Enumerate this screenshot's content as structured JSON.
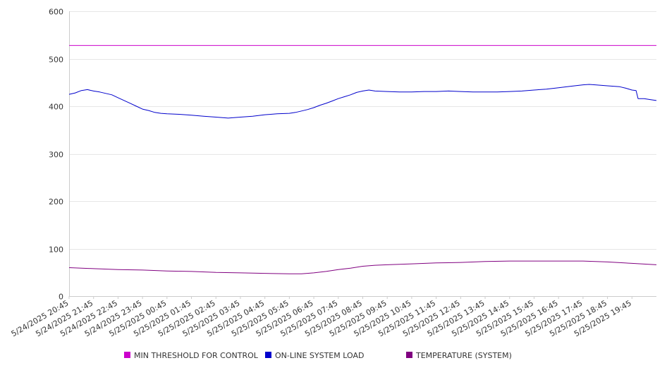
{
  "chart_data": {
    "type": "line",
    "title": "",
    "xlabel": "",
    "ylabel": "",
    "ylim": [
      0,
      600
    ],
    "yticks": [
      0,
      100,
      200,
      300,
      400,
      500,
      600
    ],
    "x_tick_labels": [
      "5/24/2025 20:45",
      "5/24/2025 21:45",
      "5/24/2025 22:45",
      "5/24/2025 23:45",
      "5/25/2025 00:45",
      "5/25/2025 01:45",
      "5/25/2025 02:45",
      "5/25/2025 03:45",
      "5/25/2025 04:45",
      "5/25/2025 05:45",
      "5/25/2025 06:45",
      "5/25/2025 07:45",
      "5/25/2025 08:45",
      "5/25/2025 09:45",
      "5/25/2025 10:45",
      "5/25/2025 11:45",
      "5/25/2025 12:45",
      "5/25/2025 13:45",
      "5/25/2025 14:45",
      "5/25/2025 15:45",
      "5/25/2025 16:45",
      "5/25/2025 17:45",
      "5/25/2025 18:45",
      "5/25/2025 19:45"
    ],
    "x_range": [
      "5/24/2025 20:45",
      "5/25/2025 20:45"
    ],
    "grid": "horizontal",
    "legend_position": "bottom",
    "series": [
      {
        "name": "MIN THRESHOLD FOR CONTROL",
        "color": "#cc00cc",
        "points": [
          [
            "5/24/2025 20:45",
            528
          ],
          [
            "5/25/2025 20:45",
            528
          ]
        ]
      },
      {
        "name": "ON-LINE SYSTEM LOAD",
        "color": "#0000cc",
        "points": [
          [
            "5/24/2025 20:45",
            425
          ],
          [
            "5/24/2025 21:00",
            428
          ],
          [
            "5/24/2025 21:15",
            433
          ],
          [
            "5/24/2025 21:30",
            435
          ],
          [
            "5/24/2025 21:45",
            432
          ],
          [
            "5/24/2025 22:00",
            430
          ],
          [
            "5/24/2025 22:15",
            427
          ],
          [
            "5/24/2025 22:30",
            424
          ],
          [
            "5/24/2025 22:45",
            418
          ],
          [
            "5/24/2025 23:00",
            412
          ],
          [
            "5/24/2025 23:15",
            406
          ],
          [
            "5/24/2025 23:30",
            400
          ],
          [
            "5/24/2025 23:45",
            394
          ],
          [
            "5/25/2025 00:00",
            391
          ],
          [
            "5/25/2025 00:15",
            387
          ],
          [
            "5/25/2025 00:30",
            385
          ],
          [
            "5/25/2025 00:45",
            384
          ],
          [
            "5/25/2025 01:15",
            383
          ],
          [
            "5/25/2025 01:45",
            381
          ],
          [
            "5/25/2025 02:15",
            379
          ],
          [
            "5/25/2025 02:45",
            377
          ],
          [
            "5/25/2025 03:15",
            375
          ],
          [
            "5/25/2025 03:45",
            377
          ],
          [
            "5/25/2025 04:15",
            379
          ],
          [
            "5/25/2025 04:45",
            382
          ],
          [
            "5/25/2025 05:15",
            384
          ],
          [
            "5/25/2025 05:45",
            385
          ],
          [
            "5/25/2025 06:00",
            387
          ],
          [
            "5/25/2025 06:15",
            390
          ],
          [
            "5/25/2025 06:30",
            393
          ],
          [
            "5/25/2025 06:45",
            397
          ],
          [
            "5/25/2025 07:00",
            402
          ],
          [
            "5/25/2025 07:15",
            406
          ],
          [
            "5/25/2025 07:30",
            411
          ],
          [
            "5/25/2025 07:45",
            416
          ],
          [
            "5/25/2025 08:00",
            420
          ],
          [
            "5/25/2025 08:15",
            424
          ],
          [
            "5/25/2025 08:30",
            429
          ],
          [
            "5/25/2025 08:45",
            432
          ],
          [
            "5/25/2025 09:00",
            434
          ],
          [
            "5/25/2025 09:15",
            432
          ],
          [
            "5/25/2025 09:45",
            431
          ],
          [
            "5/25/2025 10:15",
            430
          ],
          [
            "5/25/2025 10:45",
            430
          ],
          [
            "5/25/2025 11:15",
            431
          ],
          [
            "5/25/2025 11:45",
            431
          ],
          [
            "5/25/2025 12:15",
            432
          ],
          [
            "5/25/2025 12:45",
            431
          ],
          [
            "5/25/2025 13:15",
            430
          ],
          [
            "5/25/2025 13:45",
            430
          ],
          [
            "5/25/2025 14:15",
            430
          ],
          [
            "5/25/2025 14:45",
            431
          ],
          [
            "5/25/2025 15:15",
            432
          ],
          [
            "5/25/2025 15:45",
            434
          ],
          [
            "5/25/2025 16:15",
            436
          ],
          [
            "5/25/2025 16:45",
            439
          ],
          [
            "5/25/2025 17:15",
            442
          ],
          [
            "5/25/2025 17:45",
            445
          ],
          [
            "5/25/2025 18:00",
            446
          ],
          [
            "5/25/2025 18:15",
            445
          ],
          [
            "5/25/2025 18:45",
            443
          ],
          [
            "5/25/2025 19:15",
            441
          ],
          [
            "5/25/2025 19:30",
            438
          ],
          [
            "5/25/2025 19:45",
            434
          ],
          [
            "5/25/2025 19:55",
            433
          ],
          [
            "5/25/2025 20:00",
            416
          ],
          [
            "5/25/2025 20:15",
            416
          ],
          [
            "5/25/2025 20:30",
            414
          ],
          [
            "5/25/2025 20:45",
            412
          ]
        ]
      },
      {
        "name": "TEMPERATURE (SYSTEM)",
        "color": "#800080",
        "points": [
          [
            "5/24/2025 20:45",
            60
          ],
          [
            "5/24/2025 21:45",
            58
          ],
          [
            "5/24/2025 22:45",
            56
          ],
          [
            "5/24/2025 23:45",
            55
          ],
          [
            "5/25/2025 00:45",
            53
          ],
          [
            "5/25/2025 01:45",
            52
          ],
          [
            "5/25/2025 02:45",
            50
          ],
          [
            "5/25/2025 03:45",
            49
          ],
          [
            "5/25/2025 04:45",
            48
          ],
          [
            "5/25/2025 05:45",
            47
          ],
          [
            "5/25/2025 06:15",
            47
          ],
          [
            "5/25/2025 06:45",
            49
          ],
          [
            "5/25/2025 07:15",
            52
          ],
          [
            "5/25/2025 07:45",
            56
          ],
          [
            "5/25/2025 08:15",
            59
          ],
          [
            "5/25/2025 08:45",
            63
          ],
          [
            "5/25/2025 09:15",
            65
          ],
          [
            "5/25/2025 09:45",
            66
          ],
          [
            "5/25/2025 10:45",
            68
          ],
          [
            "5/25/2025 11:45",
            70
          ],
          [
            "5/25/2025 12:45",
            71
          ],
          [
            "5/25/2025 13:45",
            73
          ],
          [
            "5/25/2025 14:45",
            74
          ],
          [
            "5/25/2025 15:45",
            74
          ],
          [
            "5/25/2025 16:45",
            74
          ],
          [
            "5/25/2025 17:45",
            74
          ],
          [
            "5/25/2025 18:45",
            72
          ],
          [
            "5/25/2025 19:45",
            69
          ],
          [
            "5/25/2025 20:45",
            66
          ]
        ]
      }
    ]
  }
}
